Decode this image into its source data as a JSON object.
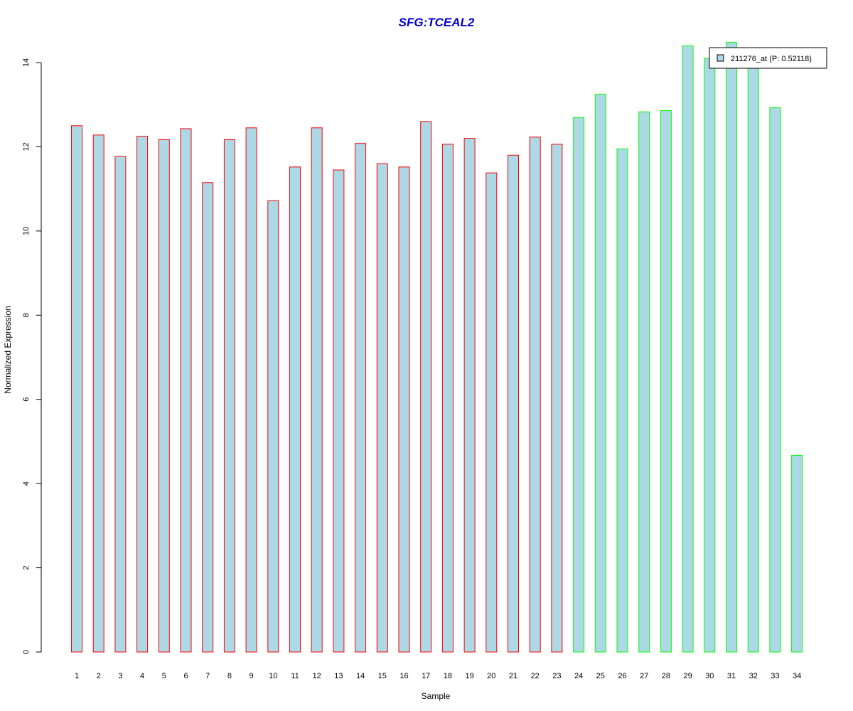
{
  "chart_data": {
    "type": "bar",
    "title": "SFG:TCEAL2",
    "xlabel": "Sample",
    "ylabel": "Normalized Expression",
    "ylim": [
      0,
      14.5
    ],
    "yticks": [
      0,
      2,
      4,
      6,
      8,
      10,
      12,
      14
    ],
    "categories": [
      "1",
      "2",
      "3",
      "4",
      "5",
      "6",
      "7",
      "8",
      "9",
      "10",
      "11",
      "12",
      "13",
      "14",
      "15",
      "16",
      "17",
      "18",
      "19",
      "20",
      "21",
      "22",
      "23",
      "24",
      "25",
      "26",
      "27",
      "28",
      "29",
      "30",
      "31",
      "32",
      "33",
      "34"
    ],
    "values": [
      12.5,
      12.28,
      11.77,
      12.25,
      12.17,
      12.43,
      11.15,
      12.17,
      12.45,
      10.72,
      11.52,
      12.45,
      11.45,
      12.08,
      11.6,
      11.52,
      12.6,
      12.06,
      12.2,
      11.38,
      11.8,
      12.23,
      12.06,
      12.69,
      13.25,
      11.95,
      12.83,
      12.86,
      14.4,
      14.1,
      14.48,
      14.0,
      12.93,
      4.67
    ],
    "groups": [
      {
        "color": "#ff0000",
        "from": 1,
        "to": 23
      },
      {
        "color": "#00ff00",
        "from": 24,
        "to": 34
      }
    ],
    "bar_fill": "#add8e6",
    "title_color": "#0000cd",
    "grid": false,
    "legend": {
      "placement": "top-right",
      "entries": [
        {
          "label": "211276_at (P: 0.52118)",
          "fill": "#add8e6"
        }
      ]
    }
  }
}
